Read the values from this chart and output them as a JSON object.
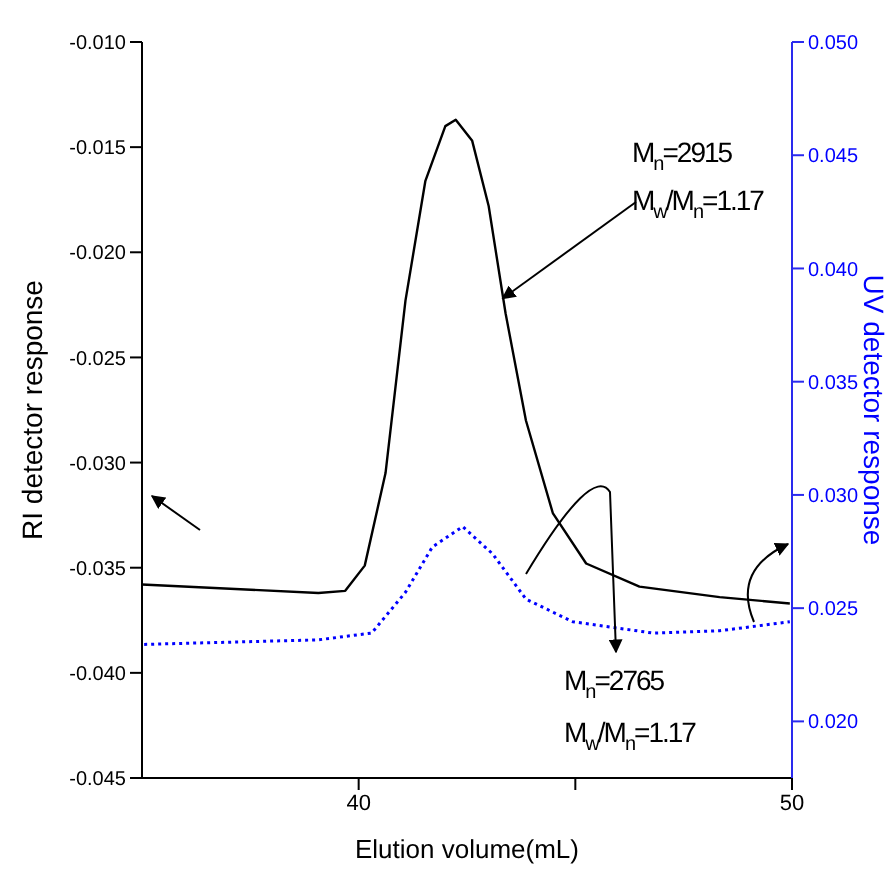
{
  "chart_data": {
    "type": "line",
    "xlabel": "Elution volume(mL)",
    "ylabel": "RI detector response",
    "y2label": "UV detector response",
    "xlim": [
      35,
      50
    ],
    "xticks": [
      40,
      {
        "value": 45,
        "label": null
      },
      50
    ],
    "ylim": [
      -0.045,
      -0.01
    ],
    "yticks": [
      {
        "value": -0.045,
        "label": "-0.045"
      },
      {
        "value": -0.04,
        "label": "-0.040"
      },
      {
        "value": -0.035,
        "label": "-0.035"
      },
      {
        "value": -0.03,
        "label": "-0.030"
      },
      {
        "value": -0.025,
        "label": "-0.025"
      },
      {
        "value": -0.02,
        "label": "-0.020"
      },
      {
        "value": -0.015,
        "label": "-0.015"
      },
      {
        "value": -0.01,
        "label": "-0.010"
      }
    ],
    "y2lim": [
      0.0175,
      0.05
    ],
    "y2ticks": [
      {
        "value": 0.02,
        "label": "0.020"
      },
      {
        "value": 0.025,
        "label": "0.025"
      },
      {
        "value": 0.03,
        "label": "0.030"
      },
      {
        "value": 0.035,
        "label": "0.035"
      },
      {
        "value": 0.04,
        "label": "0.040"
      },
      {
        "value": 0.045,
        "label": "0.045"
      },
      {
        "value": 0.05,
        "label": "0.050"
      }
    ],
    "marker": "none",
    "series": [
      {
        "color": "#000000",
        "line_style": "solid",
        "x": [
          35,
          39.07,
          39.69,
          40.14,
          40.62,
          41.08,
          41.54,
          42.0,
          42.24,
          42.62,
          43.0,
          43.39,
          43.86,
          44.48,
          45.25,
          46.48,
          48.33,
          49.95
        ],
        "values": [
          -0.0358,
          -0.0362,
          -0.0361,
          -0.0349,
          -0.0305,
          -0.0223,
          -0.0166,
          -0.014,
          -0.0137,
          -0.0147,
          -0.0178,
          -0.0229,
          -0.028,
          -0.0324,
          -0.0348,
          -0.0359,
          -0.0364,
          -0.0367
        ]
      },
      {
        "color": "#0000ff",
        "line_style": "dotted",
        "axis": "y2",
        "x": [
          35.05,
          39.07,
          40.3,
          41.08,
          41.7,
          42.4,
          43.09,
          43.86,
          44.94,
          46.79,
          48.33,
          49.95
        ],
        "values": [
          0.0234,
          0.0236,
          0.0239,
          0.0257,
          0.0277,
          0.0286,
          0.0274,
          0.0254,
          0.0244,
          0.0239,
          0.024,
          0.0244
        ]
      }
    ],
    "annotations": [
      {
        "text": "M$_{n}$=2915",
        "x": 43.3,
        "y": -0.0222
      },
      "M$_{w}$/M$_{n}$=1.17",
      "M$_{n}$=2765",
      "M$_{w}$/M$_{n}$=1.17"
    ]
  }
}
